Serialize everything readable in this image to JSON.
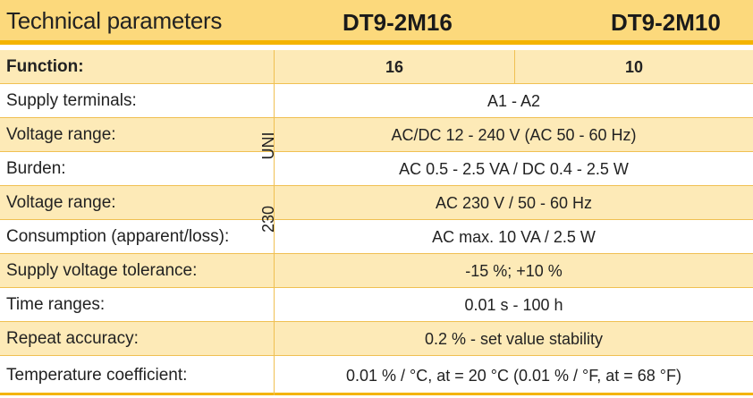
{
  "header": {
    "title": "Technical parameters",
    "models": [
      "DT9-2M16",
      "DT9-2M10"
    ]
  },
  "function_row": {
    "label": "Function:",
    "values": [
      "16",
      "10"
    ]
  },
  "rows": [
    {
      "label": "Supply terminals:",
      "value": "A1 - A2"
    },
    {
      "label": "Voltage range:",
      "value": "AC/DC 12 - 240 V (AC 50 - 60 Hz)"
    },
    {
      "label": "Burden:",
      "value": "AC 0.5 - 2.5 VA / DC 0.4 - 2.5 W"
    },
    {
      "label": "Voltage range:",
      "value": "AC 230 V / 50 - 60 Hz"
    },
    {
      "label": "Consumption (apparent/loss):",
      "value": "AC max. 10 VA / 2.5 W"
    },
    {
      "label": "Supply voltage tolerance:",
      "value": "-15 %; +10 %"
    },
    {
      "label": "Time ranges:",
      "value": "0.01 s - 100 h"
    },
    {
      "label": "Repeat accuracy:",
      "value": "0.2 % - set value stability"
    },
    {
      "label": "Temperature coefficient:",
      "value": "0.01 % / °C, at = 20 °C (0.01 % / °F, at = 68 °F)"
    }
  ],
  "side_labels": {
    "uni": "UNI",
    "v230": "230"
  },
  "colors": {
    "header_bg": "#fcd97c",
    "accent": "#f4b400",
    "row_shade": "#fdeab7"
  }
}
